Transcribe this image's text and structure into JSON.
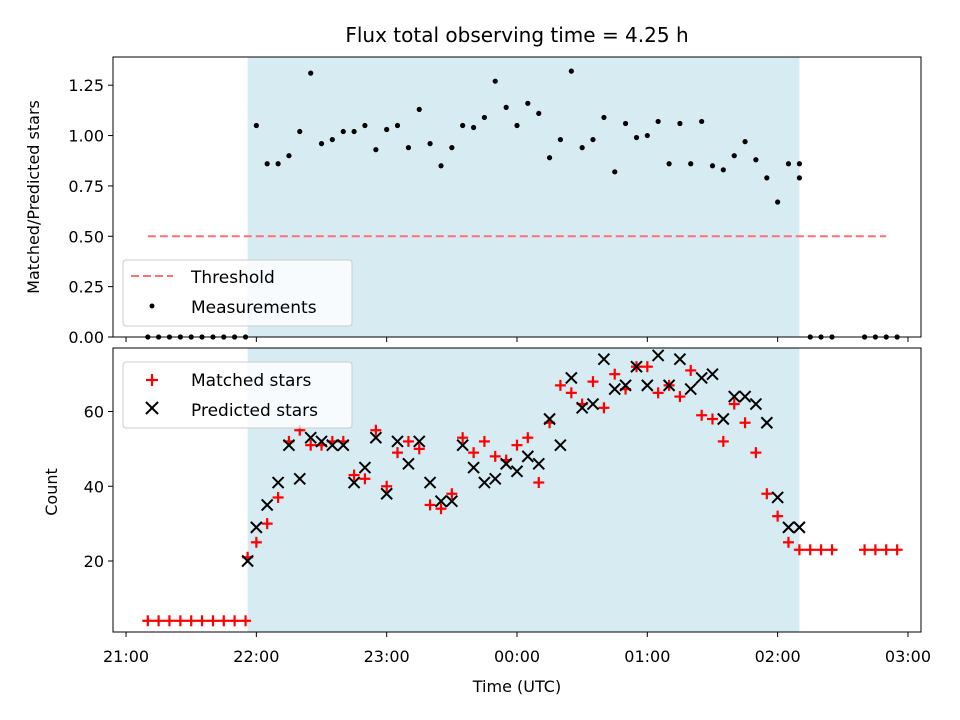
{
  "chart_data": [
    {
      "type": "scatter",
      "title": "Flux total observing time = 4.25 h",
      "xlabel": "",
      "ylabel": "Matched/Predicted stars",
      "x_units": "hours since 21:00 UTC",
      "xlim": [
        -0.1,
        6.1
      ],
      "ylim": [
        0.0,
        1.39
      ],
      "yticks": [
        0.0,
        0.25,
        0.5,
        0.75,
        1.0,
        1.25
      ],
      "ytick_labels": [
        "0.00",
        "0.25",
        "0.50",
        "0.75",
        "1.00",
        "1.25"
      ],
      "shaded_span": [
        0.933,
        5.167
      ],
      "shaded_color": "#add8e6",
      "legend_position": "lower-left",
      "threshold": {
        "name": "Threshold",
        "value": 0.5,
        "x_range": [
          0.167,
          5.833
        ],
        "color": "#ff7070",
        "style": "dashed"
      },
      "series": [
        {
          "name": "Measurements",
          "color": "#000000",
          "x": [
            0.167,
            0.25,
            0.333,
            0.417,
            0.5,
            0.583,
            0.667,
            0.75,
            0.833,
            0.917,
            1.0,
            1.083,
            1.167,
            1.25,
            1.333,
            1.417,
            1.5,
            1.583,
            1.667,
            1.75,
            1.833,
            1.917,
            2.0,
            2.083,
            2.167,
            2.25,
            2.333,
            2.417,
            2.5,
            2.583,
            2.667,
            2.75,
            2.833,
            2.917,
            3.0,
            3.083,
            3.167,
            3.25,
            3.333,
            3.417,
            3.5,
            3.583,
            3.667,
            3.75,
            3.833,
            3.917,
            4.0,
            4.083,
            4.167,
            4.25,
            4.333,
            4.417,
            4.5,
            4.583,
            4.667,
            4.75,
            4.833,
            4.917,
            5.0,
            5.083,
            5.167,
            5.25,
            5.333,
            5.417,
            5.667,
            5.75,
            5.833,
            5.917
          ],
          "y": [
            0,
            0,
            0,
            0,
            0,
            0,
            0,
            0,
            0,
            0,
            1.05,
            0.86,
            0.86,
            0.9,
            1.02,
            1.31,
            0.96,
            0.98,
            1.02,
            1.02,
            1.05,
            0.93,
            1.03,
            1.05,
            0.94,
            1.13,
            0.96,
            0.85,
            0.94,
            1.05,
            1.04,
            1.09,
            1.27,
            1.14,
            1.05,
            1.16,
            1.11,
            0.89,
            0.98,
            1.32,
            0.94,
            0.98,
            1.09,
            0.82,
            1.06,
            0.99,
            1.0,
            1.07,
            0.86,
            1.06,
            0.86,
            1.07,
            0.85,
            0.83,
            0.9,
            0.97,
            0.88,
            0.79,
            0.67,
            0.86,
            0.86,
            0,
            0,
            0,
            0,
            0,
            0,
            0
          ]
        }
      ],
      "extra_points": [
        {
          "x": 5.167,
          "y": 0.79
        }
      ]
    },
    {
      "type": "scatter",
      "title": "",
      "xlabel": "Time (UTC)",
      "ylabel": "Count",
      "x_units": "hours since 21:00 UTC",
      "xlim": [
        -0.1,
        6.1
      ],
      "ylim": [
        1,
        77
      ],
      "yticks": [
        20,
        40,
        60
      ],
      "ytick_labels": [
        "20",
        "40",
        "60"
      ],
      "xticks": [
        0,
        1,
        2,
        3,
        4,
        5,
        6
      ],
      "xtick_labels": [
        "21:00",
        "22:00",
        "23:00",
        "00:00",
        "01:00",
        "02:00",
        "03:00"
      ],
      "shaded_span": [
        0.933,
        5.167
      ],
      "legend_position": "upper-left",
      "series": [
        {
          "name": "Matched stars",
          "marker": "plus",
          "color": "#ff0000",
          "x": [
            0.167,
            0.25,
            0.333,
            0.417,
            0.5,
            0.583,
            0.667,
            0.75,
            0.833,
            0.917,
            0.933,
            1.0,
            1.083,
            1.167,
            1.25,
            1.333,
            1.417,
            1.5,
            1.583,
            1.667,
            1.75,
            1.833,
            1.917,
            2.0,
            2.083,
            2.167,
            2.25,
            2.333,
            2.417,
            2.5,
            2.583,
            2.667,
            2.75,
            2.833,
            2.917,
            3.0,
            3.083,
            3.167,
            3.25,
            3.333,
            3.417,
            3.5,
            3.583,
            3.667,
            3.75,
            3.833,
            3.917,
            4.0,
            4.083,
            4.167,
            4.25,
            4.333,
            4.417,
            4.5,
            4.583,
            4.667,
            4.75,
            4.833,
            4.917,
            5.0,
            5.083,
            5.167,
            5.25,
            5.333,
            5.417,
            5.667,
            5.75,
            5.833,
            5.917
          ],
          "y": [
            4,
            4,
            4,
            4,
            4,
            4,
            4,
            4,
            4,
            4,
            21,
            25,
            30,
            37,
            52,
            55,
            51,
            51,
            52,
            52,
            43,
            42,
            55,
            40,
            49,
            52,
            50,
            35,
            34,
            38,
            53,
            49,
            52,
            48,
            47,
            51,
            53,
            41,
            57,
            67,
            65,
            62,
            68,
            61,
            70,
            66,
            72,
            72,
            65,
            67,
            64,
            71,
            59,
            58,
            52,
            62,
            57,
            49,
            38,
            32,
            25,
            23,
            23,
            23,
            23,
            23,
            23,
            23,
            23
          ]
        },
        {
          "name": "Predicted stars",
          "marker": "x",
          "color": "#000000",
          "x": [
            0.933,
            1.0,
            1.083,
            1.167,
            1.25,
            1.333,
            1.417,
            1.5,
            1.583,
            1.667,
            1.75,
            1.833,
            1.917,
            2.0,
            2.083,
            2.167,
            2.25,
            2.333,
            2.417,
            2.5,
            2.583,
            2.667,
            2.75,
            2.833,
            2.917,
            3.0,
            3.083,
            3.167,
            3.25,
            3.333,
            3.417,
            3.5,
            3.583,
            3.667,
            3.75,
            3.833,
            3.917,
            4.0,
            4.083,
            4.167,
            4.25,
            4.333,
            4.417,
            4.5,
            4.583,
            4.667,
            4.75,
            4.833,
            4.917,
            5.0,
            5.083,
            5.167
          ],
          "y": [
            20,
            29,
            35,
            41,
            51,
            42,
            53,
            52,
            51,
            51,
            41,
            45,
            53,
            38,
            52,
            46,
            52,
            41,
            36,
            36,
            51,
            45,
            41,
            42,
            46,
            44,
            48,
            46,
            58,
            51,
            69,
            61,
            62,
            74,
            66,
            67,
            72,
            67,
            75,
            67,
            74,
            66,
            69,
            70,
            58,
            64,
            64,
            62,
            57,
            37,
            29,
            29
          ]
        }
      ]
    }
  ]
}
